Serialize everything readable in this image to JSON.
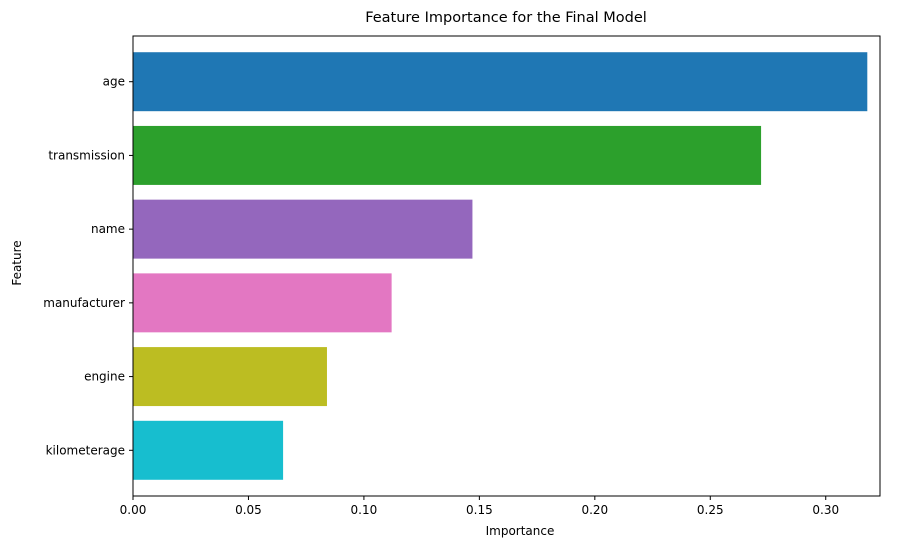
{
  "chart_data": {
    "type": "bar",
    "orientation": "horizontal",
    "title": "Feature Importance for the Final Model",
    "xlabel": "Importance",
    "ylabel": "Feature",
    "categories": [
      "age",
      "transmission",
      "name",
      "manufacturer",
      "engine",
      "kilometerage"
    ],
    "values": [
      0.318,
      0.272,
      0.147,
      0.112,
      0.084,
      0.065
    ],
    "colors": [
      "#1f77b4",
      "#2ca02c",
      "#9467bd",
      "#e377c2",
      "#bcbd22",
      "#17becf"
    ],
    "xlim": [
      0,
      0.3235
    ],
    "xticks": [
      0.0,
      0.05,
      0.1,
      0.15,
      0.2,
      0.25,
      0.3
    ],
    "xtick_labels": [
      "0.00",
      "0.05",
      "0.10",
      "0.15",
      "0.20",
      "0.25",
      "0.30"
    ],
    "grid": false,
    "legend": "none"
  }
}
